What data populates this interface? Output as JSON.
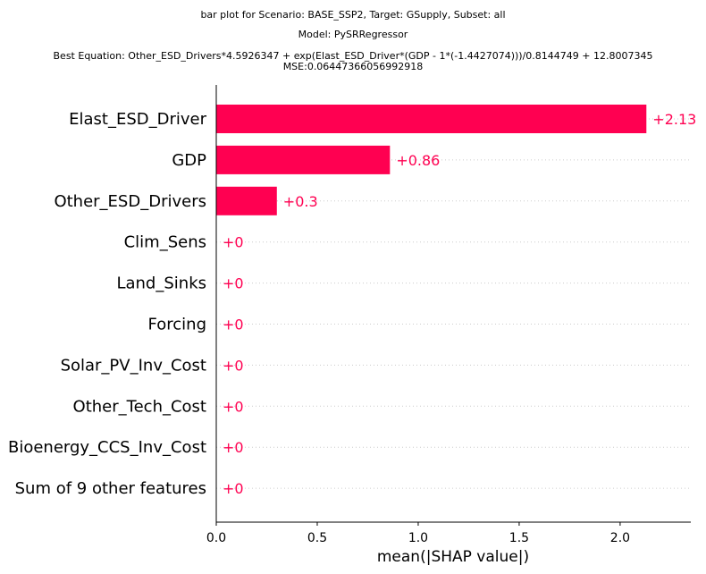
{
  "title": {
    "line1": "bar plot for Scenario: BASE_SSP2, Target: GSupply, Subset: all",
    "line2": "Model: PySRRegressor",
    "line3": "Best Equation: Other_ESD_Drivers*4.5926347 + exp(Elast_ESD_Driver*(GDP - 1*(-1.4427074)))/0.8144749 + 12.8007345",
    "line4": "MSE:0.06447366056992918"
  },
  "chart_data": {
    "type": "bar",
    "orientation": "horizontal",
    "categories": [
      "Elast_ESD_Driver",
      "GDP",
      "Other_ESD_Drivers",
      "Clim_Sens",
      "Land_Sinks",
      "Forcing",
      "Solar_PV_Inv_Cost",
      "Other_Tech_Cost",
      "Bioenergy_CCS_Inv_Cost",
      "Sum of 9 other features"
    ],
    "values": [
      2.13,
      0.86,
      0.3,
      0,
      0,
      0,
      0,
      0,
      0,
      0
    ],
    "value_labels": [
      "+2.13",
      "+0.86",
      "+0.3",
      "+0",
      "+0",
      "+0",
      "+0",
      "+0",
      "+0",
      "+0"
    ],
    "xlabel": "mean(|SHAP value|)",
    "ylabel": "",
    "xlim": [
      0,
      2.35
    ],
    "xticks": [
      "0.0",
      "0.5",
      "1.0",
      "1.5",
      "2.0"
    ],
    "bar_color": "#ff0051",
    "grid": "dotted horizontal guides per row"
  }
}
